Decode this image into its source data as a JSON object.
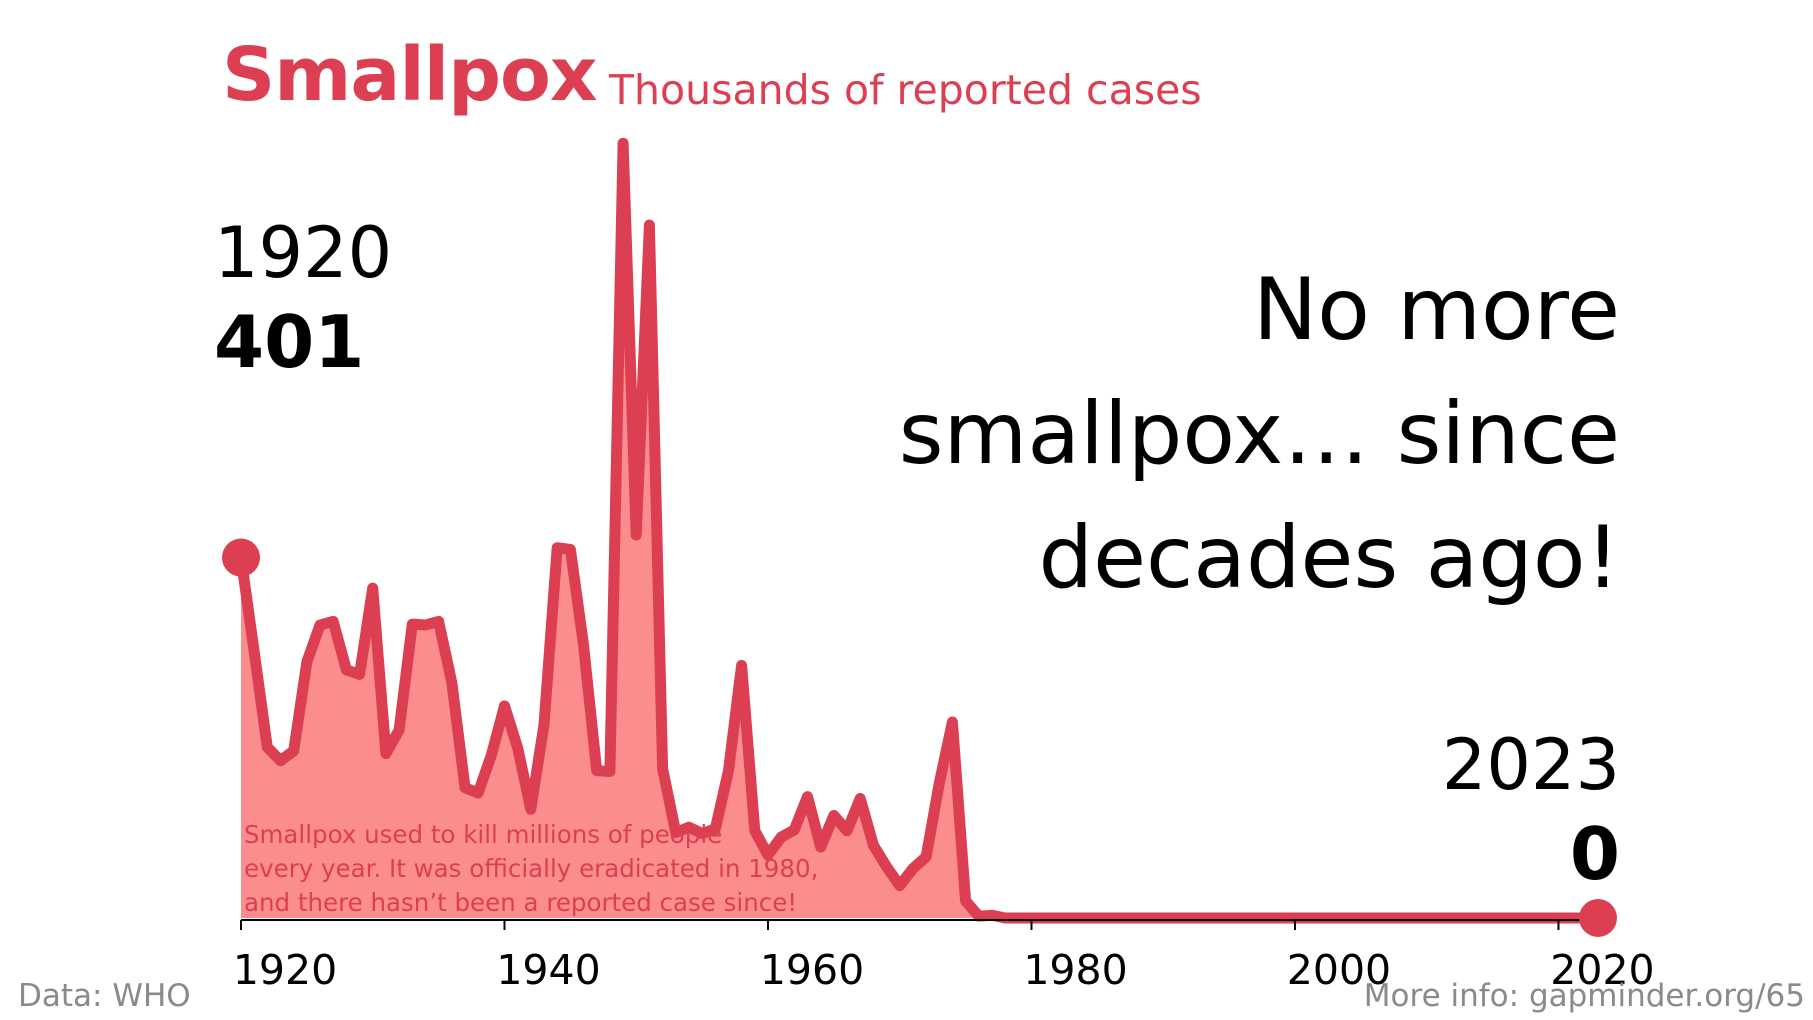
{
  "header": {
    "title": "Smallpox",
    "subtitle": "Thousands of reported cases"
  },
  "annotations": {
    "start_year": "1920",
    "start_value": "401",
    "headline_lines": [
      "No more",
      "smallpox… since",
      "decades ago!"
    ],
    "end_year": "2023",
    "end_value": "0",
    "note_lines": [
      "Smallpox used to kill millions of people",
      "every year. It was officially eradicated in 1980,",
      "and there hasn’t been a reported case since!"
    ]
  },
  "footer": {
    "source": "Data: WHO",
    "more_info": "More info: gapminder.org/65"
  },
  "colors": {
    "line": "#dc3e52",
    "area": "#fc8d8d",
    "text": "#000000",
    "muted": "#8a8a8a"
  },
  "chart_data": {
    "type": "area",
    "title": "Smallpox",
    "subtitle": "Thousands of reported cases",
    "xlabel": "",
    "ylabel": "",
    "xlim": [
      1920,
      2023
    ],
    "ylim": [
      0,
      880
    ],
    "grid": false,
    "x_ticks": [
      1920,
      1940,
      1960,
      1980,
      2000,
      2020
    ],
    "series": [
      {
        "points": [
          [
            1920,
            401
          ],
          [
            1921,
            296
          ],
          [
            1922,
            190
          ],
          [
            1923,
            175
          ],
          [
            1924,
            186
          ],
          [
            1925,
            285
          ],
          [
            1926,
            326
          ],
          [
            1927,
            330
          ],
          [
            1928,
            276
          ],
          [
            1929,
            271
          ],
          [
            1930,
            367
          ],
          [
            1931,
            183
          ],
          [
            1932,
            209
          ],
          [
            1933,
            327
          ],
          [
            1934,
            326
          ],
          [
            1935,
            330
          ],
          [
            1936,
            262
          ],
          [
            1937,
            145
          ],
          [
            1938,
            139
          ],
          [
            1939,
            181
          ],
          [
            1940,
            236
          ],
          [
            1941,
            189
          ],
          [
            1942,
            121
          ],
          [
            1943,
            215
          ],
          [
            1944,
            412
          ],
          [
            1945,
            410
          ],
          [
            1946,
            304
          ],
          [
            1947,
            164
          ],
          [
            1948,
            163
          ],
          [
            1949,
            862
          ],
          [
            1950,
            426
          ],
          [
            1951,
            771
          ],
          [
            1952,
            166
          ],
          [
            1953,
            95
          ],
          [
            1954,
            101
          ],
          [
            1955,
            94
          ],
          [
            1956,
            99
          ],
          [
            1957,
            164
          ],
          [
            1958,
            281
          ],
          [
            1959,
            97
          ],
          [
            1960,
            70
          ],
          [
            1961,
            90
          ],
          [
            1962,
            98
          ],
          [
            1963,
            135
          ],
          [
            1964,
            79
          ],
          [
            1965,
            114
          ],
          [
            1966,
            97
          ],
          [
            1967,
            133
          ],
          [
            1968,
            81
          ],
          [
            1969,
            57
          ],
          [
            1970,
            36
          ],
          [
            1971,
            55
          ],
          [
            1972,
            68
          ],
          [
            1973,
            150
          ],
          [
            1974,
            218
          ],
          [
            1975,
            19
          ],
          [
            1976,
            2
          ],
          [
            1977,
            3
          ],
          [
            1978,
            0
          ],
          [
            1979,
            0
          ],
          [
            1980,
            0
          ],
          [
            1990,
            0
          ],
          [
            2000,
            0
          ],
          [
            2010,
            0
          ],
          [
            2023,
            0
          ]
        ]
      }
    ]
  }
}
